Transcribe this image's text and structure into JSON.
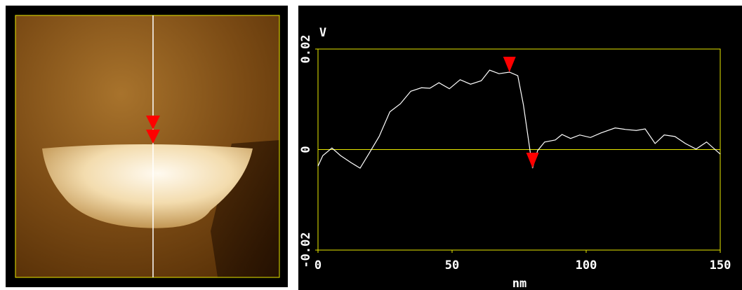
{
  "chart_data": {
    "type": "line",
    "xlabel": "nm",
    "ylabel": "V",
    "x": [
      0,
      1.8,
      5.2,
      8.4,
      12.3,
      15.7,
      18.9,
      22.8,
      26.8,
      30.7,
      34.6,
      38.6,
      41.7,
      45.1,
      49.0,
      53.0,
      56.9,
      60.9,
      64.0,
      67.5,
      71.4,
      74.5,
      76.6,
      78.5,
      80.0,
      81.9,
      84.5,
      88.5,
      91.0,
      94.2,
      97.6,
      101.6,
      105.5,
      110.8,
      114.7,
      118.7,
      122.0,
      125.7,
      129.1,
      133.1,
      137.0,
      141.0,
      144.9,
      150.0
    ],
    "series": [
      {
        "color": "#ffffff",
        "values": [
          -0.0033,
          -0.0012,
          0.0003,
          -0.0012,
          -0.0026,
          -0.0037,
          -0.0009,
          0.0026,
          0.0075,
          0.0091,
          0.0116,
          0.0123,
          0.0122,
          0.0133,
          0.0121,
          0.0139,
          0.013,
          0.0137,
          0.0158,
          0.0151,
          0.0154,
          0.0147,
          0.0089,
          0.0019,
          -0.0037,
          -0.0002,
          0.0015,
          0.0019,
          0.003,
          0.0022,
          0.0029,
          0.0024,
          0.0033,
          0.0043,
          0.004,
          0.0038,
          0.0041,
          0.0012,
          0.0029,
          0.0026,
          0.0012,
          0.0001,
          0.0015,
          -0.0009
        ]
      }
    ],
    "markers": {
      "color": "#ff0000",
      "x": [
        71.4,
        80.0
      ],
      "y": [
        0.0154,
        -0.0037
      ]
    },
    "xlim": [
      0,
      150
    ],
    "xticks": [
      0,
      50,
      100,
      150
    ],
    "ylim": [
      -0.02,
      0.02
    ],
    "yticks": [
      -0.02,
      0,
      0.02
    ],
    "frame_color": "#e8e800"
  }
}
